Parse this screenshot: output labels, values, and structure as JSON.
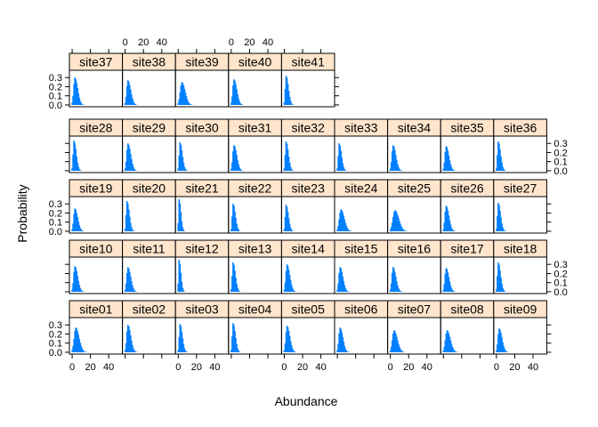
{
  "chart_data": {
    "type": "bar",
    "layout": "lattice-trellis",
    "xlabel": "Abundance",
    "ylabel": "Probability",
    "xlim": [
      -3,
      55
    ],
    "ylim": [
      -0.02,
      0.38
    ],
    "x_ticks": [
      0,
      20,
      40
    ],
    "y_ticks": [
      0.0,
      0.1,
      0.2,
      0.3
    ],
    "y_tick_labels": [
      "0.0",
      "0.1",
      "0.2",
      "0.3"
    ],
    "strip_color": "#ffe5cc",
    "bar_color": "#0080ff",
    "rows": [
      [
        "site37",
        "site38",
        "site39",
        "site40",
        "site41"
      ],
      [
        "site28",
        "site29",
        "site30",
        "site31",
        "site32",
        "site33",
        "site34",
        "site35",
        "site36"
      ],
      [
        "site19",
        "site20",
        "site21",
        "site22",
        "site23",
        "site24",
        "site25",
        "site26",
        "site27"
      ],
      [
        "site10",
        "site11",
        "site12",
        "site13",
        "site14",
        "site15",
        "site16",
        "site17",
        "site18"
      ],
      [
        "site01",
        "site02",
        "site03",
        "site04",
        "site05",
        "site06",
        "site07",
        "site08",
        "site09"
      ]
    ],
    "peaks": {
      "site37": [
        3,
        0.3
      ],
      "site38": [
        3,
        0.27
      ],
      "site39": [
        4,
        0.25
      ],
      "site40": [
        3,
        0.28
      ],
      "site41": [
        2,
        0.32
      ],
      "site28": [
        2,
        0.33
      ],
      "site29": [
        3,
        0.3
      ],
      "site30": [
        2,
        0.31
      ],
      "site31": [
        3,
        0.28
      ],
      "site32": [
        2,
        0.32
      ],
      "site33": [
        2,
        0.3
      ],
      "site34": [
        3,
        0.28
      ],
      "site35": [
        3,
        0.27
      ],
      "site36": [
        2,
        0.32
      ],
      "site19": [
        3,
        0.25
      ],
      "site20": [
        2,
        0.33
      ],
      "site21": [
        1,
        0.35
      ],
      "site22": [
        2,
        0.3
      ],
      "site23": [
        2,
        0.29
      ],
      "site24": [
        4,
        0.24
      ],
      "site25": [
        5,
        0.23
      ],
      "site26": [
        3,
        0.28
      ],
      "site27": [
        2,
        0.31
      ],
      "site10": [
        3,
        0.28
      ],
      "site11": [
        3,
        0.27
      ],
      "site12": [
        1,
        0.35
      ],
      "site13": [
        2,
        0.32
      ],
      "site14": [
        3,
        0.3
      ],
      "site15": [
        3,
        0.27
      ],
      "site16": [
        3,
        0.27
      ],
      "site17": [
        3,
        0.26
      ],
      "site18": [
        2,
        0.32
      ],
      "site01": [
        4,
        0.27
      ],
      "site02": [
        3,
        0.3
      ],
      "site03": [
        2,
        0.31
      ],
      "site04": [
        2,
        0.32
      ],
      "site05": [
        3,
        0.29
      ],
      "site06": [
        3,
        0.27
      ],
      "site07": [
        4,
        0.24
      ],
      "site08": [
        4,
        0.24
      ],
      "site09": [
        3,
        0.26
      ]
    }
  }
}
